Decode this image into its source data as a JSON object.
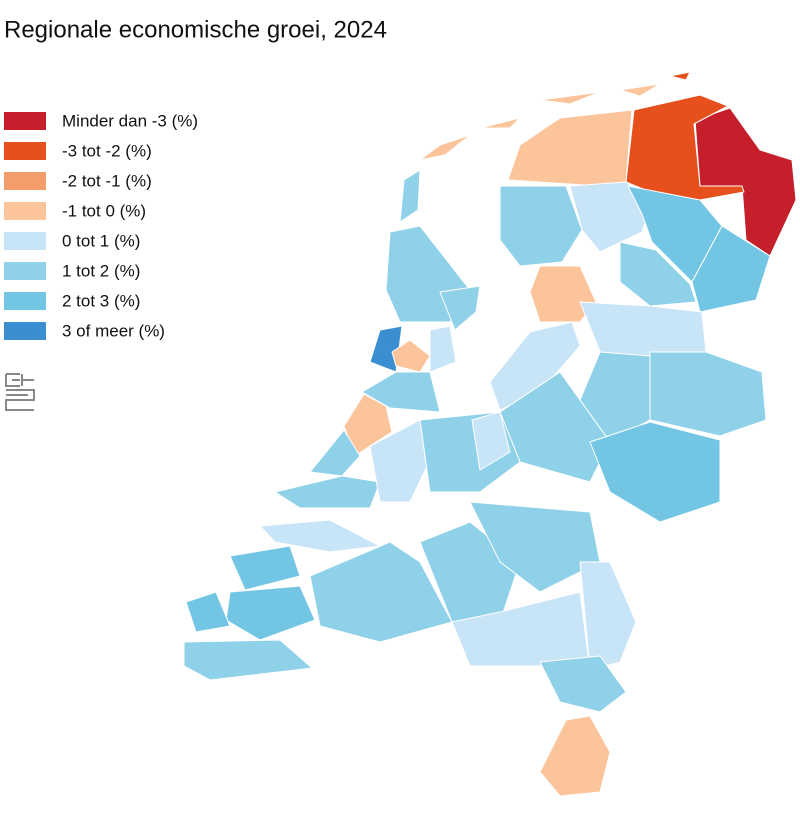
{
  "title": "Regionale economische groei, 2024",
  "legend": [
    {
      "label": "Minder dan -3 (%)",
      "color": "#c41f2a"
    },
    {
      "label": "-3 tot -2 (%)",
      "color": "#e6501d"
    },
    {
      "label": "-2 tot -1 (%)",
      "color": "#f39d6b"
    },
    {
      "label": "-1 tot 0 (%)",
      "color": "#fbc49b"
    },
    {
      "label": "0 tot 1 (%)",
      "color": "#c8e5f8"
    },
    {
      "label": "1 tot 2 (%)",
      "color": "#90d1ea"
    },
    {
      "label": "2 tot 3 (%)",
      "color": "#72c6e4"
    },
    {
      "label": "3 of meer (%)",
      "color": "#3b8fd1"
    }
  ]
}
